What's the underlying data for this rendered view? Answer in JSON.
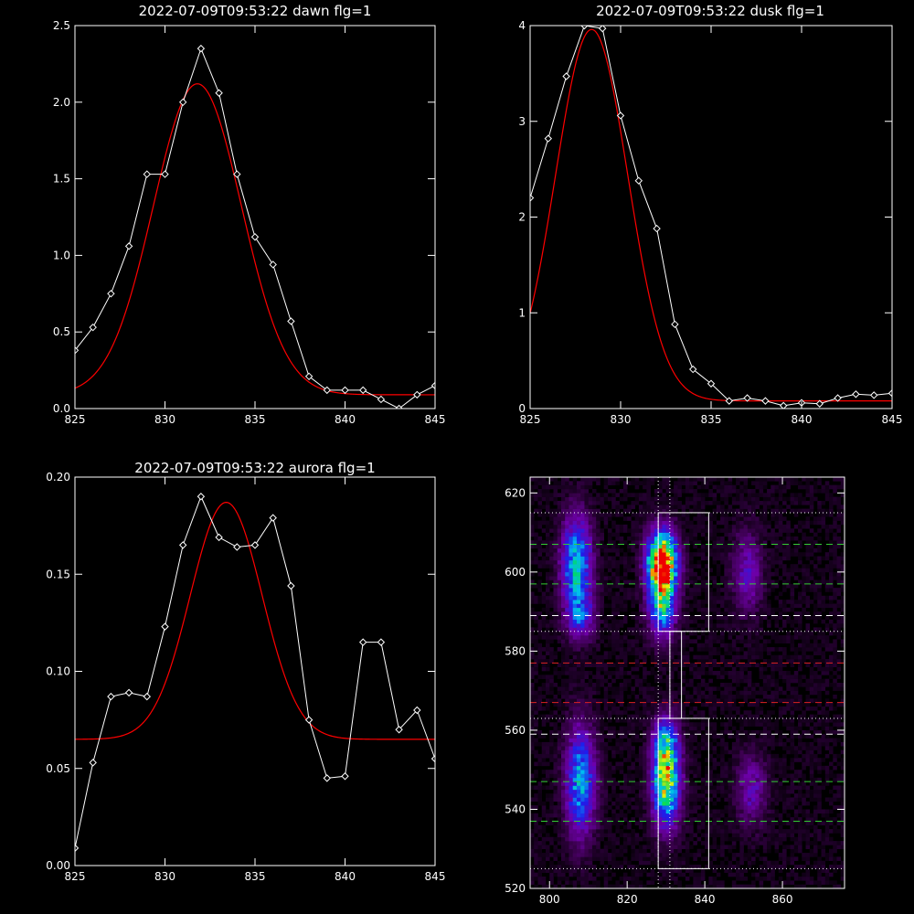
{
  "chart_data": [
    {
      "id": "dawn",
      "type": "line",
      "title": "2022-07-09T09:53:22 dawn flg=1",
      "xlim": [
        825,
        845
      ],
      "ylim": [
        0,
        2.5
      ],
      "xticks": [
        825,
        830,
        835,
        840,
        845
      ],
      "xtick_labels": [
        "825",
        "830",
        "835",
        "840",
        "845"
      ],
      "yticks": [
        0,
        0.5,
        1.0,
        1.5,
        2.0,
        2.5
      ],
      "ytick_labels": [
        "0.0",
        "0.5",
        "1.0",
        "1.5",
        "2.0",
        "2.5"
      ],
      "series": [
        {
          "style": "data",
          "color": "#ffffff",
          "marker": "diamond",
          "x": [
            825,
            826,
            827,
            828,
            829,
            830,
            831,
            832,
            833,
            834,
            835,
            836,
            837,
            838,
            839,
            840,
            841,
            842,
            843,
            844,
            845
          ],
          "y": [
            0.38,
            0.53,
            0.75,
            1.06,
            1.53,
            1.53,
            2.0,
            2.35,
            2.06,
            1.53,
            1.12,
            0.94,
            0.57,
            0.21,
            0.12,
            0.12,
            0.12,
            0.06,
            0.0,
            0.09,
            0.15
          ]
        },
        {
          "style": "fit",
          "color": "#ff0000",
          "model": "gaussian",
          "amplitude": 2.03,
          "center": 831.8,
          "sigma": 2.45,
          "baseline": 0.09
        }
      ]
    },
    {
      "id": "dusk",
      "type": "line",
      "title": "2022-07-09T09:53:22 dusk flg=1",
      "xlim": [
        825,
        845
      ],
      "ylim": [
        0,
        4
      ],
      "xticks": [
        825,
        830,
        835,
        840,
        845
      ],
      "xtick_labels": [
        "825",
        "830",
        "835",
        "840",
        "845"
      ],
      "yticks": [
        0,
        1,
        2,
        3,
        4
      ],
      "ytick_labels": [
        "0",
        "1",
        "2",
        "3",
        "4"
      ],
      "series": [
        {
          "style": "data",
          "color": "#ffffff",
          "marker": "diamond",
          "x": [
            825,
            826,
            827,
            828,
            829,
            830,
            831,
            832,
            833,
            834,
            835,
            836,
            837,
            838,
            839,
            840,
            841,
            842,
            843,
            844,
            845
          ],
          "y": [
            2.2,
            2.82,
            3.47,
            4.0,
            3.97,
            3.06,
            2.38,
            1.88,
            0.88,
            0.41,
            0.26,
            0.08,
            0.11,
            0.08,
            0.03,
            0.06,
            0.05,
            0.11,
            0.15,
            0.14,
            0.16
          ]
        },
        {
          "style": "fit",
          "color": "#ff0000",
          "model": "gaussian",
          "amplitude": 3.88,
          "center": 828.4,
          "sigma": 2.0,
          "baseline": 0.08
        }
      ]
    },
    {
      "id": "aurora",
      "type": "line",
      "title": "2022-07-09T09:53:22 aurora flg=1",
      "xlim": [
        825,
        845
      ],
      "ylim": [
        0,
        0.2
      ],
      "xticks": [
        825,
        830,
        835,
        840,
        845
      ],
      "xtick_labels": [
        "825",
        "830",
        "835",
        "840",
        "845"
      ],
      "yticks": [
        0,
        0.05,
        0.1,
        0.15,
        0.2
      ],
      "ytick_labels": [
        "0.00",
        "0.05",
        "0.10",
        "0.15",
        "0.20"
      ],
      "series": [
        {
          "style": "data",
          "color": "#ffffff",
          "marker": "diamond",
          "x": [
            825,
            826,
            827,
            828,
            829,
            830,
            831,
            832,
            833,
            834,
            835,
            836,
            837,
            838,
            839,
            840,
            841,
            842,
            843,
            844,
            845
          ],
          "y": [
            0.009,
            0.053,
            0.087,
            0.089,
            0.087,
            0.123,
            0.165,
            0.19,
            0.169,
            0.164,
            0.165,
            0.179,
            0.144,
            0.075,
            0.045,
            0.046,
            0.115,
            0.115,
            0.07,
            0.08,
            0.055
          ]
        },
        {
          "style": "fit",
          "color": "#ff0000",
          "model": "gaussian",
          "amplitude": 0.122,
          "center": 833.4,
          "sigma": 2.0,
          "baseline": 0.065
        }
      ]
    },
    {
      "id": "image",
      "type": "heatmap",
      "title": "",
      "colormap": "rainbow",
      "xlim": [
        795,
        876
      ],
      "ylim": [
        520,
        624
      ],
      "xticks": [
        800,
        820,
        840,
        860
      ],
      "xtick_labels": [
        "800",
        "820",
        "840",
        "860"
      ],
      "yticks": [
        520,
        540,
        560,
        580,
        600,
        620
      ],
      "ytick_labels": [
        "520",
        "540",
        "560",
        "580",
        "600",
        "620"
      ],
      "blobs": [
        {
          "x": 807,
          "y": 602,
          "sx": 2.6,
          "sy": 8,
          "amp": 0.55
        },
        {
          "x": 808,
          "y": 589,
          "sx": 2.4,
          "sy": 4,
          "amp": 0.3
        },
        {
          "x": 829,
          "y": 603,
          "sx": 2.6,
          "sy": 5,
          "amp": 1.0
        },
        {
          "x": 829,
          "y": 593,
          "sx": 2.3,
          "sy": 6,
          "amp": 0.65
        },
        {
          "x": 851,
          "y": 600,
          "sx": 2.6,
          "sy": 7,
          "amp": 0.22
        },
        {
          "x": 808,
          "y": 547,
          "sx": 2.6,
          "sy": 9,
          "amp": 0.5
        },
        {
          "x": 830,
          "y": 546,
          "sx": 2.4,
          "sy": 7,
          "amp": 0.7
        },
        {
          "x": 830,
          "y": 556,
          "sx": 2.2,
          "sy": 5,
          "amp": 0.45
        },
        {
          "x": 852,
          "y": 545,
          "sx": 2.6,
          "sy": 6,
          "amp": 0.22
        }
      ],
      "hlines": [
        {
          "y": 615,
          "color": "#ffffff",
          "style": "dotted"
        },
        {
          "y": 607,
          "color": "#33cc33",
          "style": "dashed"
        },
        {
          "y": 597,
          "color": "#33cc33",
          "style": "dashed"
        },
        {
          "y": 589,
          "color": "#ffffff",
          "style": "dashed"
        },
        {
          "y": 585,
          "color": "#ffffff",
          "style": "dotted"
        },
        {
          "y": 577,
          "color": "#dd2222",
          "style": "dashed"
        },
        {
          "y": 567,
          "color": "#dd2222",
          "style": "dashed"
        },
        {
          "y": 563,
          "color": "#ffffff",
          "style": "dotted"
        },
        {
          "y": 559,
          "color": "#ffffff",
          "style": "dashed"
        },
        {
          "y": 547,
          "color": "#33cc33",
          "style": "dashed"
        },
        {
          "y": 537,
          "color": "#33cc33",
          "style": "dashed"
        },
        {
          "y": 525,
          "color": "#ffffff",
          "style": "dotted"
        }
      ],
      "vlines": [
        {
          "x": 828,
          "color": "#ffffff",
          "style": "dotted"
        },
        {
          "x": 831,
          "color": "#ffffff",
          "style": "dotted"
        }
      ],
      "regions": [
        {
          "x": [
            828,
            841
          ],
          "y": [
            585,
            615
          ]
        },
        {
          "x": [
            831,
            834
          ],
          "y": [
            563,
            585
          ]
        },
        {
          "x": [
            828,
            841
          ],
          "y": [
            525,
            563
          ]
        }
      ]
    }
  ]
}
